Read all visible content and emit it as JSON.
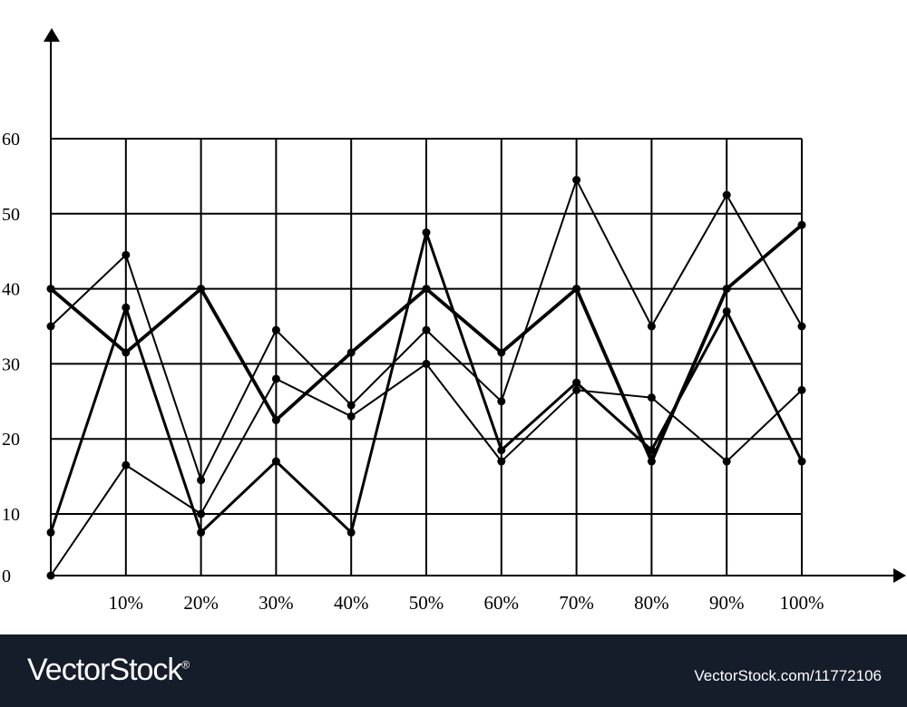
{
  "chart_data": {
    "type": "line",
    "title": "",
    "xlabel": "",
    "ylabel": "",
    "x_tick_labels": [
      "10%",
      "20%",
      "30%",
      "40%",
      "50%",
      "60%",
      "70%",
      "80%",
      "90%",
      "100%"
    ],
    "y_tick_labels": [
      "0",
      "10",
      "20",
      "30",
      "40",
      "50",
      "60"
    ],
    "x": [
      0,
      10,
      20,
      30,
      40,
      50,
      60,
      70,
      80,
      90,
      100
    ],
    "ylim": [
      0,
      60
    ],
    "grid": true,
    "line_color": "#000000",
    "series": [
      {
        "values": [
          40,
          31.5,
          40,
          22.5,
          31.5,
          40,
          31.5,
          40,
          17,
          40,
          48.5
        ]
      },
      {
        "values": [
          7,
          37.5,
          7,
          17,
          7,
          47.5,
          18.5,
          27.5,
          18.5,
          37,
          17
        ]
      },
      {
        "values": [
          0,
          16.5,
          10,
          28,
          23,
          30,
          17,
          26.5,
          25.5,
          17,
          26.5
        ]
      },
      {
        "values": [
          35,
          44.5,
          14.5,
          34.5,
          24.5,
          34.5,
          25,
          54.5,
          35,
          52.5,
          35
        ]
      }
    ]
  },
  "footer": {
    "logo": "VectorStock",
    "logo_mark": "®",
    "credit": "VectorStock.com/11772106"
  }
}
